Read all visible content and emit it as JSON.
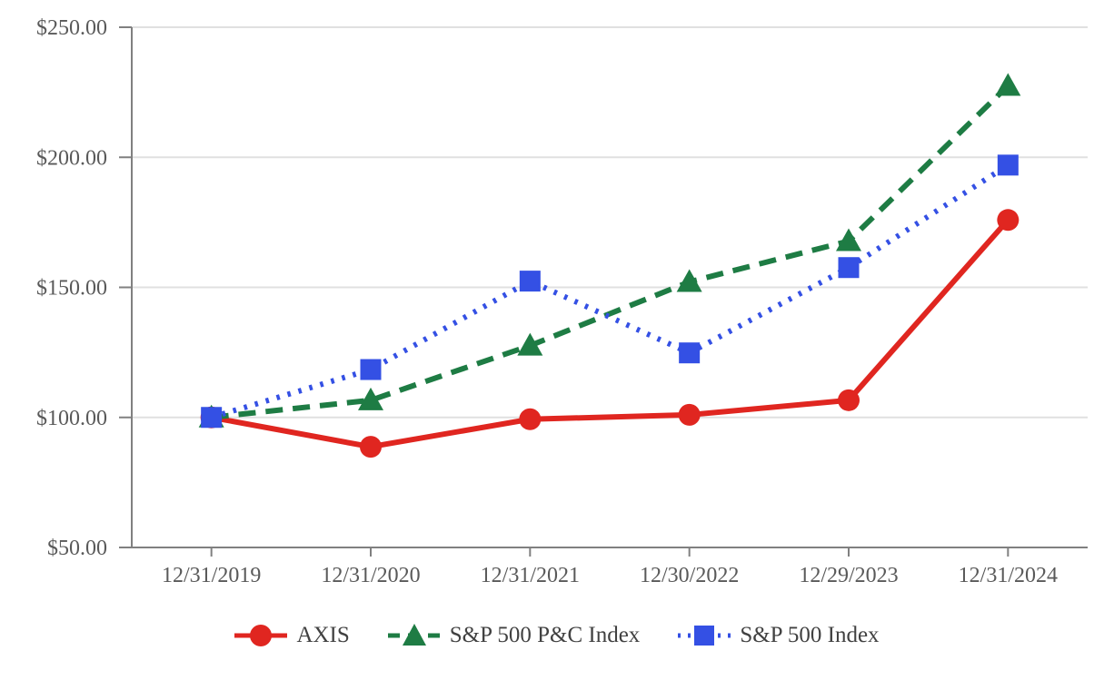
{
  "chart_data": {
    "type": "line",
    "categories": [
      "12/31/2019",
      "12/31/2020",
      "12/31/2021",
      "12/30/2022",
      "12/29/2023",
      "12/31/2024"
    ],
    "series": [
      {
        "name": "AXIS",
        "color": "#E02620",
        "marker": "circle",
        "line_style": "solid",
        "values": [
          100.0,
          88.7,
          99.3,
          101.0,
          106.6,
          175.9
        ]
      },
      {
        "name": "S&P 500 P&C Index",
        "color": "#1E7C44",
        "marker": "triangle",
        "line_style": "dashed",
        "values": [
          100.0,
          106.6,
          127.6,
          152.1,
          167.8,
          227.5
        ]
      },
      {
        "name": "S&P 500 Index",
        "color": "#3450E4",
        "marker": "square",
        "line_style": "dotted",
        "values": [
          100.0,
          118.4,
          152.4,
          124.8,
          157.6,
          197.0
        ]
      }
    ],
    "y_axis": {
      "tick_labels": [
        "$250.00",
        "$200.00",
        "$150.00",
        "$100.00",
        "$50.00"
      ],
      "tick_values": [
        250,
        200,
        150,
        100,
        50
      ],
      "ylim": [
        50,
        250
      ]
    },
    "grid": "horizontal",
    "legend_position": "bottom",
    "colors": {
      "axis_line": "#808080",
      "gridline": "#E0E0E0",
      "tick_label": "#595959",
      "legend_text": "#414141"
    }
  }
}
